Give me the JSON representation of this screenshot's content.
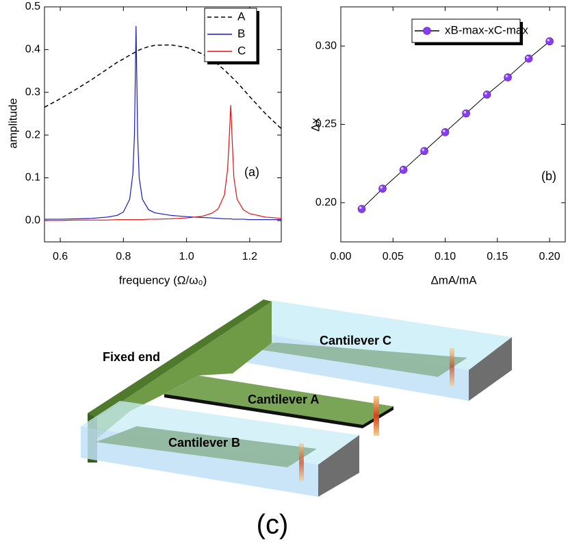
{
  "chart_data": [
    {
      "type": "line",
      "x_label": "frequency (Ω/ω₀)",
      "y_label": "amplitude",
      "annotation": "(a)",
      "x": [
        0.55,
        0.6,
        0.65,
        0.7,
        0.75,
        0.78,
        0.8,
        0.82,
        0.83,
        0.835,
        0.84,
        0.845,
        0.85,
        0.86,
        0.88,
        0.9,
        0.95,
        1.0,
        1.05,
        1.08,
        1.1,
        1.12,
        1.13,
        1.135,
        1.14,
        1.145,
        1.15,
        1.16,
        1.18,
        1.2,
        1.25,
        1.3
      ],
      "series": [
        {
          "name": "A",
          "color": "#000000",
          "dashed": true,
          "values": [
            0.265,
            0.285,
            0.307,
            0.33,
            0.355,
            0.37,
            0.378,
            0.387,
            0.391,
            0.393,
            0.395,
            0.397,
            0.399,
            0.402,
            0.407,
            0.41,
            0.411,
            0.405,
            0.39,
            0.376,
            0.365,
            0.352,
            0.345,
            0.341,
            0.338,
            0.334,
            0.331,
            0.323,
            0.307,
            0.29,
            0.25,
            0.215
          ]
        },
        {
          "name": "B",
          "color": "#1515c8",
          "dashed": false,
          "values": [
            0.003,
            0.003,
            0.004,
            0.005,
            0.008,
            0.012,
            0.02,
            0.05,
            0.11,
            0.2,
            0.455,
            0.2,
            0.1,
            0.05,
            0.025,
            0.018,
            0.012,
            0.009,
            0.007,
            0.006,
            0.005,
            0.004,
            0.004,
            0.004,
            0.004,
            0.003,
            0.003,
            0.003,
            0.003,
            0.002,
            0.002,
            0.002
          ]
        },
        {
          "name": "C",
          "color": "#e01010",
          "dashed": false,
          "values": [
            0.0,
            0.0,
            0.001,
            0.001,
            0.001,
            0.002,
            0.002,
            0.002,
            0.002,
            0.002,
            0.002,
            0.002,
            0.002,
            0.002,
            0.003,
            0.003,
            0.004,
            0.006,
            0.01,
            0.017,
            0.027,
            0.06,
            0.12,
            0.19,
            0.27,
            0.18,
            0.1,
            0.05,
            0.025,
            0.016,
            0.008,
            0.005
          ]
        }
      ],
      "xlim": [
        0.55,
        1.3
      ],
      "xticks": [
        0.6,
        0.8,
        {
          "value": 1,
          "label": "1.0"
        },
        1.2
      ],
      "ylim": [
        -0.05,
        0.5
      ],
      "yticks": [
        {
          "value": 0,
          "label": "0.0"
        },
        0.1,
        0.2,
        0.3,
        0.4,
        0.5
      ],
      "legend": "upper right",
      "grid": false
    },
    {
      "type": "scatter-line",
      "x_label": "ΔmA/mA",
      "y_label": "Δx",
      "annotation": "(b)",
      "x": [
        0.02,
        0.04,
        0.06,
        0.08,
        0.1,
        0.12,
        0.14,
        0.16,
        0.18,
        0.2
      ],
      "series": [
        {
          "name": "xB-max-xC-max",
          "color": "#8a3cf0",
          "values": [
            0.196,
            0.209,
            0.221,
            0.233,
            0.245,
            0.257,
            0.269,
            0.28,
            0.292,
            0.303
          ]
        }
      ],
      "xlim": [
        0,
        0.215
      ],
      "xticks": [
        {
          "value": 0,
          "label": "0.00"
        },
        0.05,
        {
          "value": 0.1,
          "label": "0.10"
        },
        0.15,
        {
          "value": 0.2,
          "label": "0.20"
        }
      ],
      "ylim": [
        0.175,
        0.325
      ],
      "yticks": [
        {
          "value": 0.2,
          "label": "0.20"
        },
        0.25,
        {
          "value": 0.3,
          "label": "0.30"
        }
      ],
      "legend": "upper right",
      "grid": false
    }
  ],
  "diagram": {
    "labels": {
      "fixed_end": "Fixed end",
      "cantilever_a": "Cantilever A",
      "cantilever_b": "Cantilever B",
      "cantilever_c": "Cantilever C"
    },
    "caption": "(c)"
  }
}
